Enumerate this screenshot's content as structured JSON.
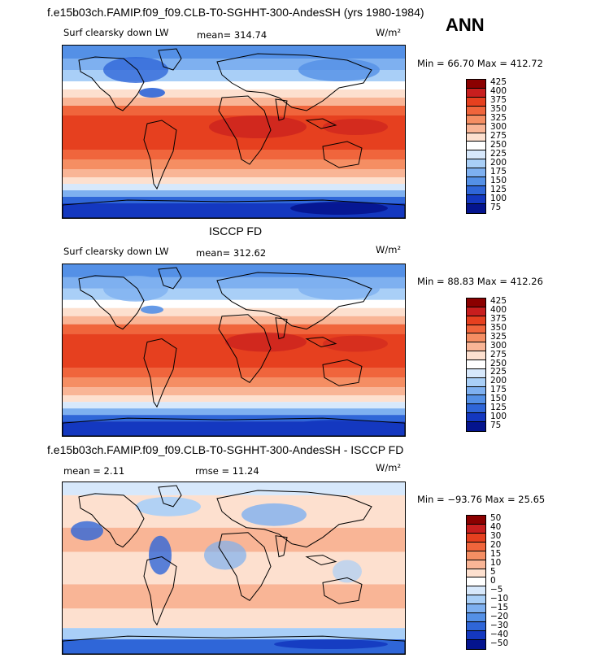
{
  "header": {
    "title": "f.e15b03ch.FAMIP.f09_f09.CLB-T0-SGHHT-300-AndesSH (yrs 1980-1984)",
    "season": "ANN"
  },
  "chart_data": [
    {
      "type": "heatmap",
      "title": "f.e15b03ch.FAMIP.f09_f09.CLB-T0-SGHHT-300-AndesSH (yrs 1980-1984)",
      "variable": "Surf clearsky down LW",
      "units": "W/m²",
      "mean_text": "mean= 314.74",
      "mean": 314.73,
      "min": 66.7,
      "max": 412.72,
      "minmax_text": "Min =  66.70 Max = 412.72",
      "levels": [
        "425",
        "400",
        "375",
        "350",
        "325",
        "300",
        "275",
        "250",
        "225",
        "200",
        "175",
        "150",
        "125",
        "100",
        "75"
      ],
      "colors": [
        "#8b0000",
        "#c81e1e",
        "#e6401f",
        "#f0653c",
        "#f58e63",
        "#f9b596",
        "#fde0cf",
        "#ffffff",
        "#d7e8fb",
        "#a9cff7",
        "#7eb0f0",
        "#5490e6",
        "#2f66d8",
        "#1438c0",
        "#04148e"
      ]
    },
    {
      "type": "heatmap",
      "title": "ISCCP FD",
      "variable": "Surf clearsky down LW",
      "units": "W/m²",
      "mean_text": "mean= 312.62",
      "mean": 312.62,
      "min": 88.83,
      "max": 412.26,
      "minmax_text": "Min =  88.83 Max = 412.26",
      "levels": [
        "425",
        "400",
        "375",
        "350",
        "325",
        "300",
        "275",
        "250",
        "225",
        "200",
        "175",
        "150",
        "125",
        "100",
        "75"
      ],
      "colors": [
        "#8b0000",
        "#c81e1e",
        "#e6401f",
        "#f0653c",
        "#f58e63",
        "#f9b596",
        "#fde0cf",
        "#ffffff",
        "#d7e8fb",
        "#a9cff7",
        "#7eb0f0",
        "#5490e6",
        "#2f66d8",
        "#1438c0",
        "#04148e"
      ]
    },
    {
      "type": "heatmap",
      "title": "f.e15b03ch.FAMIP.f09_f09.CLB-T0-SGHHT-300-AndesSH - ISCCP FD",
      "units": "W/m²",
      "mean_text": "mean =   2.11",
      "mean": 2.11,
      "rmse_text": "rmse =   11.24",
      "rmse": 11.24,
      "min": -93.76,
      "max": 25.65,
      "minmax_text": "Min = −93.76 Max =  25.65",
      "levels": [
        "50",
        "40",
        "30",
        "20",
        "15",
        "10",
        "5",
        "0",
        "−5",
        "−10",
        "−15",
        "−20",
        "−30",
        "−40",
        "−50"
      ],
      "colors": [
        "#8b0000",
        "#c81e1e",
        "#e6401f",
        "#f0653c",
        "#f58e63",
        "#f9b596",
        "#fde0cf",
        "#ffffff",
        "#d7e8fb",
        "#a9cff7",
        "#7eb0f0",
        "#5490e6",
        "#2f66d8",
        "#1438c0",
        "#04148e"
      ]
    }
  ]
}
